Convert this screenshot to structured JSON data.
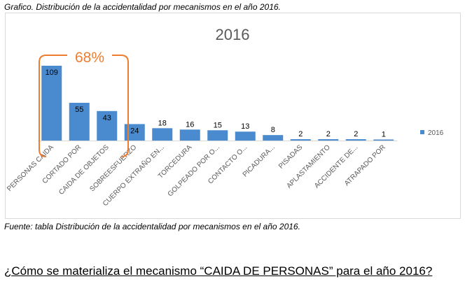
{
  "caption_top": "Grafico. Distribución de la accidentalidad por mecanismos en el año 2016.",
  "caption_bottom": "Fuente: tabla Distribución de la accidentalidad por mecanismos en el año 2016.",
  "question": "¿Cómo se materializa el mecanismo “CAIDA DE PERSONAS” para el año 2016?",
  "chart_data": {
    "type": "bar",
    "title": "2016",
    "categories": [
      "PERSONAS CAIDA",
      "CORTADO POR",
      "CAIDA DE OBJETOS",
      "SOBREESFUERZO",
      "CUERPO EXTRAÑO EN...",
      "TORCEDURA",
      "GOLPEADO POR O...",
      "CONTACTO O...",
      "PICADURA...",
      "PISADAS",
      "APLASTAMIENTO",
      "ACCIDENTE DE...",
      "ATRAPADO POR"
    ],
    "series": [
      {
        "name": "2016",
        "values": [
          109,
          55,
          43,
          24,
          18,
          16,
          15,
          13,
          8,
          2,
          2,
          2,
          1
        ]
      }
    ],
    "ylim": [
      0,
      115
    ],
    "grid": false,
    "legend": "right",
    "bar_color": "#4a8bd0",
    "annotation": {
      "text": "68%",
      "color": "#ed7d31",
      "covers_categories": [
        0,
        1,
        2
      ]
    }
  }
}
